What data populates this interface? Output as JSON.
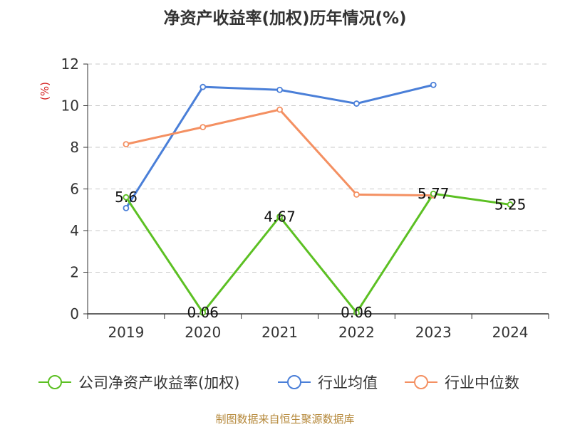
{
  "title": "净资产收益率(加权)历年情况(%)",
  "source": "制图数据来自恒生聚源数据库",
  "chart_data": {
    "type": "line",
    "title": "净资产收益率(加权)历年情况(%)",
    "ylabel": "(%)",
    "xlabel": "",
    "ylim": [
      0,
      12
    ],
    "yticks": [
      0,
      2,
      4,
      6,
      8,
      10,
      12
    ],
    "categories": [
      "2019",
      "2020",
      "2021",
      "2022",
      "2023",
      "2024"
    ],
    "grid": true,
    "legend_position": "bottom",
    "series": [
      {
        "name": "公司净资产收益率(加权)",
        "color": "#5cc023",
        "values": [
          5.6,
          0.06,
          4.67,
          0.06,
          5.77,
          5.25
        ],
        "labels": [
          "5.6",
          "0.06",
          "4.67",
          "0.06",
          "5.77",
          "5.25"
        ]
      },
      {
        "name": "行业均值",
        "color": "#4a7fd8",
        "values": [
          5.08,
          10.9,
          10.76,
          10.1,
          11.0,
          null
        ]
      },
      {
        "name": "行业中位数",
        "color": "#f49062",
        "values": [
          8.15,
          8.97,
          9.81,
          5.73,
          5.69,
          null
        ]
      }
    ]
  }
}
